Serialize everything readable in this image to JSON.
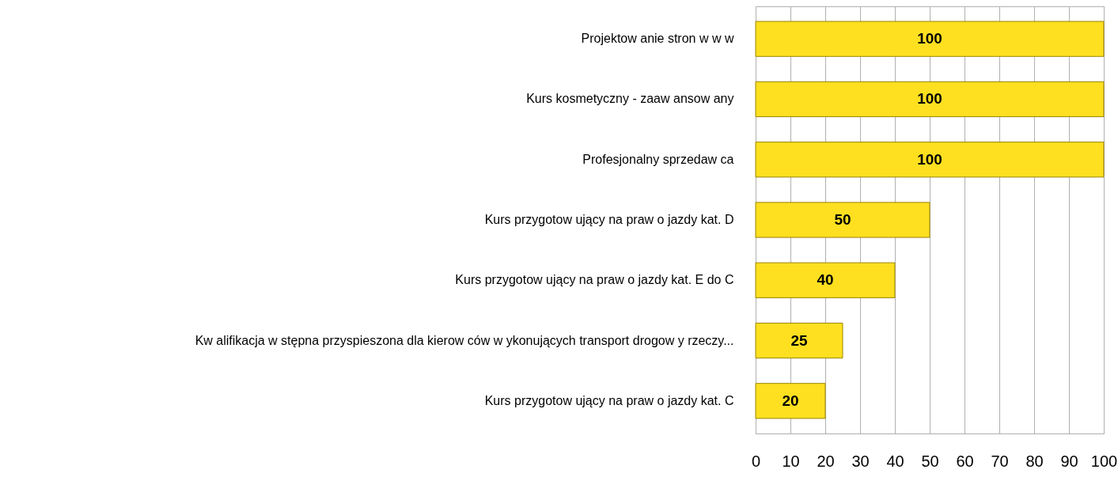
{
  "chart_data": {
    "type": "bar",
    "orientation": "horizontal",
    "categories": [
      "Projektow anie stron w w w",
      "Kurs kosmetyczny - zaaw ansow any",
      "Profesjonalny sprzedaw ca",
      "Kurs przygotow ujący na praw o jazdy kat. D",
      "Kurs przygotow ujący na praw o jazdy kat. E do C",
      "Kw alifikacja w stępna przyspieszona dla kierow ców w ykonujących transport drogow y rzeczy...",
      "Kurs przygotow ujący na praw o jazdy kat.  C"
    ],
    "values": [
      100,
      100,
      100,
      50,
      40,
      25,
      20
    ],
    "color": "#ffe020",
    "xlim": [
      0,
      100
    ],
    "xticks": [
      0,
      10,
      20,
      30,
      40,
      50,
      60,
      70,
      80,
      90,
      100
    ],
    "grid": "x",
    "data_labels": true
  }
}
